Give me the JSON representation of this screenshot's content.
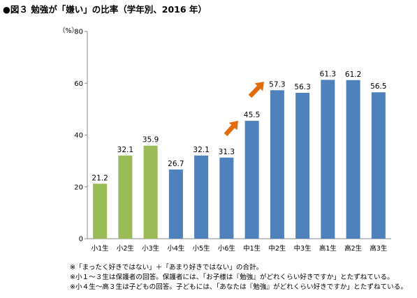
{
  "title": "●図３ 勉強が「嫌い」の比率（学年別、2016 年）",
  "chart_data": {
    "type": "bar",
    "y_unit": "（%）",
    "categories": [
      "小1生",
      "小2生",
      "小3生",
      "小4生",
      "小5生",
      "小6生",
      "中1生",
      "中2生",
      "中3生",
      "高1生",
      "高2生",
      "高3生"
    ],
    "values": [
      21.2,
      32.1,
      35.9,
      26.7,
      32.1,
      31.3,
      45.5,
      57.3,
      56.3,
      61.3,
      61.2,
      56.5
    ],
    "value_labels": [
      "21.2",
      "32.1",
      "35.9",
      "26.7",
      "32.1",
      "31.3",
      "45.5",
      "57.3",
      "56.3",
      "61.3",
      "61.2",
      "56.5"
    ],
    "ylim": [
      0,
      80
    ],
    "yticks": [
      0,
      20,
      40,
      60,
      80
    ],
    "bar_colors": [
      "#9bbb59",
      "#9bbb59",
      "#9bbb59",
      "#4f81bd",
      "#4f81bd",
      "#4f81bd",
      "#4f81bd",
      "#4f81bd",
      "#4f81bd",
      "#4f81bd",
      "#4f81bd",
      "#4f81bd"
    ],
    "arrow_color": "#e36c0a",
    "grid": false,
    "legend": "none"
  },
  "notes": [
    "※「まったく好きではない」＋「あまり好きではない」の合計。",
    "※小１～３生は保護者の回答。保護者には、「お子様は『勉強』がどれくらい好きですか」とたずねている。",
    "※小４生～高３生は子どもの回答。子どもには、「あなたは『勉強』がどれくらい好きですか」とたずねている。"
  ]
}
